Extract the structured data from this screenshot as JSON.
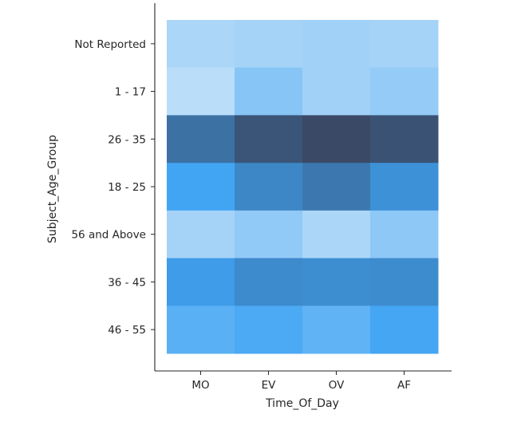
{
  "chart_data": {
    "type": "heatmap",
    "title": "",
    "xlabel": "Time_Of_Day",
    "ylabel": "Subject_Age_Group",
    "x_categories": [
      "MO",
      "EV",
      "OV",
      "AF"
    ],
    "y_categories": [
      "Not Reported",
      "1 - 17",
      "26 - 35",
      "18 - 25",
      "56 and Above",
      "36 - 45",
      "46 - 55"
    ],
    "color_scale": {
      "type": "seaborn-histplot-blue",
      "low_color": "#eaf3fb",
      "mid_color": "#3ea3f3",
      "high_color": "#3a4a66"
    },
    "values_relative": [
      [
        0.18,
        0.2,
        0.21,
        0.2
      ],
      [
        0.14,
        0.29,
        0.21,
        0.25
      ],
      [
        0.78,
        0.94,
        1.0,
        0.95
      ],
      [
        0.49,
        0.66,
        0.74,
        0.6
      ],
      [
        0.2,
        0.26,
        0.18,
        0.27
      ],
      [
        0.54,
        0.64,
        0.62,
        0.63
      ],
      [
        0.42,
        0.46,
        0.4,
        0.48
      ]
    ],
    "grid": false,
    "legend": "none"
  }
}
